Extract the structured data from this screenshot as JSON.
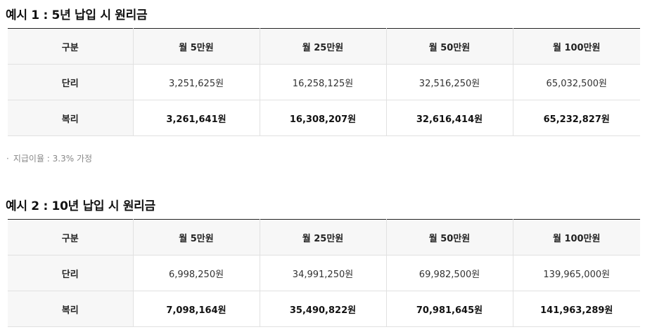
{
  "example1": {
    "title": "예시 1 : 5년 납입 시 원리금",
    "headers": [
      "구분",
      "월 5만원",
      "월 25만원",
      "월 50만원",
      "월 100만원"
    ],
    "rows": [
      {
        "label": "단리",
        "values": [
          "3,251,625원",
          "16,258,125원",
          "32,516,250원",
          "65,032,500원"
        ]
      },
      {
        "label": "복리",
        "values": [
          "3,261,641원",
          "16,308,207원",
          "32,616,414원",
          "65,232,827원"
        ]
      }
    ]
  },
  "note": {
    "bullet": "·",
    "text": "지급이율 : 3.3% 가정"
  },
  "example2": {
    "title": "예시 2 : 10년 납입 시 원리금",
    "headers": [
      "구분",
      "월 5만원",
      "월 25만원",
      "월 50만원",
      "월 100만원"
    ],
    "rows": [
      {
        "label": "단리",
        "values": [
          "6,998,250원",
          "34,991,250원",
          "69,982,500원",
          "139,965,000원"
        ]
      },
      {
        "label": "복리",
        "values": [
          "7,098,164원",
          "35,490,822원",
          "70,981,645원",
          "141,963,289원"
        ]
      }
    ]
  }
}
